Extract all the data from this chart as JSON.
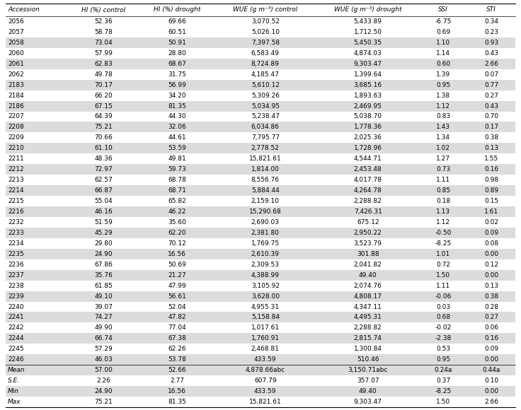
{
  "columns": [
    "Accession",
    "HI (%) control",
    "HI (%) drought",
    "WUE (g m⁻³) control",
    "WUE (g m⁻³) drought",
    "SSI",
    "STI"
  ],
  "rows": [
    [
      "2056",
      "52.36",
      "69.66",
      "3,070.52",
      "5,433.89",
      "-6.75",
      "0.34"
    ],
    [
      "2057",
      "58.78",
      "60.51",
      "5,026.10",
      "1,712.50",
      "0.69",
      "0.23"
    ],
    [
      "2058",
      "73.04",
      "50.91",
      "7,397.58",
      "5,450.35",
      "1.10",
      "0.93"
    ],
    [
      "2060",
      "57.99",
      "28.80",
      "6,583.49",
      "4,874.03",
      "1.14",
      "0.43"
    ],
    [
      "2061",
      "62.83",
      "68.67",
      "8,724.89",
      "9,303.47",
      "0.60",
      "2.66"
    ],
    [
      "2062",
      "49.78",
      "31.75",
      "4,185.47",
      "1,399.64",
      "1.39",
      "0.07"
    ],
    [
      "2183",
      "70.17",
      "56.99",
      "5,610.12",
      "3,685.16",
      "0.95",
      "0.77"
    ],
    [
      "2184",
      "66.20",
      "34.20",
      "5,309.26",
      "1,893.63",
      "1.38",
      "0.27"
    ],
    [
      "2186",
      "67.15",
      "81.35",
      "5,034.95",
      "2,469.95",
      "1.12",
      "0.43"
    ],
    [
      "2207",
      "64.39",
      "44.30",
      "5,238.47",
      "5,038.70",
      "0.83",
      "0.70"
    ],
    [
      "2208",
      "75.21",
      "32.06",
      "6,034.86",
      "1,778.36",
      "1.43",
      "0.17"
    ],
    [
      "2209",
      "70.66",
      "44.61",
      "7,795.77",
      "2,025.36",
      "1.34",
      "0.38"
    ],
    [
      "2210",
      "61.10",
      "53.59",
      "2,778.52",
      "1,728.96",
      "1.02",
      "0.13"
    ],
    [
      "2211",
      "48.36",
      "49.81",
      "15,821.61",
      "4,544.71",
      "1.27",
      "1.55"
    ],
    [
      "2212",
      "72.97",
      "59.73",
      "1,814.00",
      "2,453.48",
      "0.73",
      "0.16"
    ],
    [
      "2213",
      "62.57",
      "68.78",
      "8,556.76",
      "4,017.78",
      "1.11",
      "0.98"
    ],
    [
      "2214",
      "66.87",
      "68.71",
      "5,884.44",
      "4,264.78",
      "0.85",
      "0.89"
    ],
    [
      "2215",
      "55.04",
      "65.82",
      "2,159.10",
      "2,288.82",
      "0.18",
      "0.15"
    ],
    [
      "2216",
      "46.16",
      "46.22",
      "15,290.68",
      "7,426.31",
      "1.13",
      "1.61"
    ],
    [
      "2232",
      "51.59",
      "35.60",
      "2,690.03",
      "675.12",
      "1.12",
      "0.02"
    ],
    [
      "2233",
      "45.29",
      "62.20",
      "2,381.80",
      "2,950.22",
      "-0.50",
      "0.09"
    ],
    [
      "2234",
      "29.80",
      "70.12",
      "1,769.75",
      "3,523.79",
      "-8.25",
      "0.08"
    ],
    [
      "2235",
      "24.90",
      "16.56",
      "2,610.39",
      "301.88",
      "1.01",
      "0.00"
    ],
    [
      "2236",
      "67.86",
      "50.69",
      "2,309.53",
      "2,041.82",
      "0.72",
      "0.12"
    ],
    [
      "2237",
      "35.76",
      "21.27",
      "4,388.99",
      "49.40",
      "1.50",
      "0.00"
    ],
    [
      "2238",
      "61.85",
      "47.99",
      "3,105.92",
      "2,074.76",
      "1.11",
      "0.13"
    ],
    [
      "2239",
      "49.10",
      "56.61",
      "3,628.00",
      "4,808.17",
      "-0.06",
      "0.38"
    ],
    [
      "2240",
      "39.07",
      "52.04",
      "4,955.31",
      "4,347.11",
      "0.03",
      "0.28"
    ],
    [
      "2241",
      "74.27",
      "47.82",
      "5,158.84",
      "4,495.31",
      "0.68",
      "0.27"
    ],
    [
      "2242",
      "49.90",
      "77.04",
      "1,017.61",
      "2,288.82",
      "-0.02",
      "0.06"
    ],
    [
      "2244",
      "66.74",
      "67.38",
      "1,760.91",
      "2,815.74",
      "-2.38",
      "0.16"
    ],
    [
      "2245",
      "57.29",
      "62.26",
      "2,468.81",
      "1,300.84",
      "0.53",
      "0.09"
    ],
    [
      "2246",
      "46.03",
      "53.78",
      "433.59",
      "510.46",
      "0.95",
      "0.00"
    ]
  ],
  "summary_rows": [
    [
      "Mean",
      "57.00",
      "52.66",
      "4,878.66abc",
      "3,150.71abc",
      "0.24a",
      "0.44a"
    ],
    [
      "S.E.",
      "2.26",
      "2.77",
      "607.79",
      "357.07",
      "0.37",
      "0.10"
    ],
    [
      "Min",
      "24.90",
      "16.56",
      "433.59",
      "49.40",
      "-8.25",
      "0.00"
    ],
    [
      "Max",
      "75.21",
      "81.35",
      "15,821.61",
      "9,303.47",
      "1.50",
      "2.66"
    ]
  ],
  "shaded_color": "#dcdcdc",
  "white_color": "#ffffff",
  "font_size": 6.5,
  "header_font_size": 6.5,
  "row_shading": [
    0,
    0,
    1,
    0,
    1,
    0,
    1,
    0,
    1,
    0,
    1,
    0,
    1,
    0,
    1,
    0,
    1,
    0,
    1,
    0,
    1,
    0,
    1,
    0,
    1,
    0,
    1,
    0,
    1,
    0,
    1,
    0,
    1
  ],
  "summary_shading": [
    1,
    0,
    1,
    0
  ]
}
